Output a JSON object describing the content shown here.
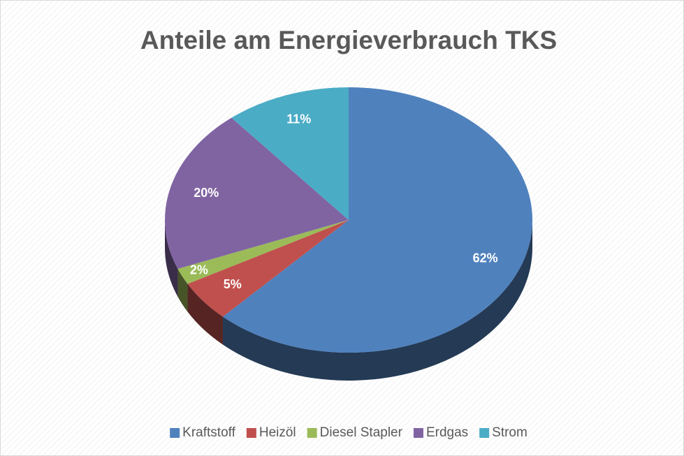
{
  "chart_data": {
    "type": "pie",
    "title": "Anteile am Energieverbrauch TKS",
    "categories": [
      "Kraftstoff",
      "Heizöl",
      "Diesel Stapler",
      "Erdgas",
      "Strom"
    ],
    "values": [
      62,
      5,
      2,
      20,
      11
    ],
    "value_labels": [
      "62%",
      "5%",
      "2%",
      "20%",
      "11%"
    ],
    "colors": [
      "#4f81bd",
      "#c0504d",
      "#9bbb59",
      "#8064a2",
      "#4bacc6"
    ],
    "legend": "bottom"
  }
}
